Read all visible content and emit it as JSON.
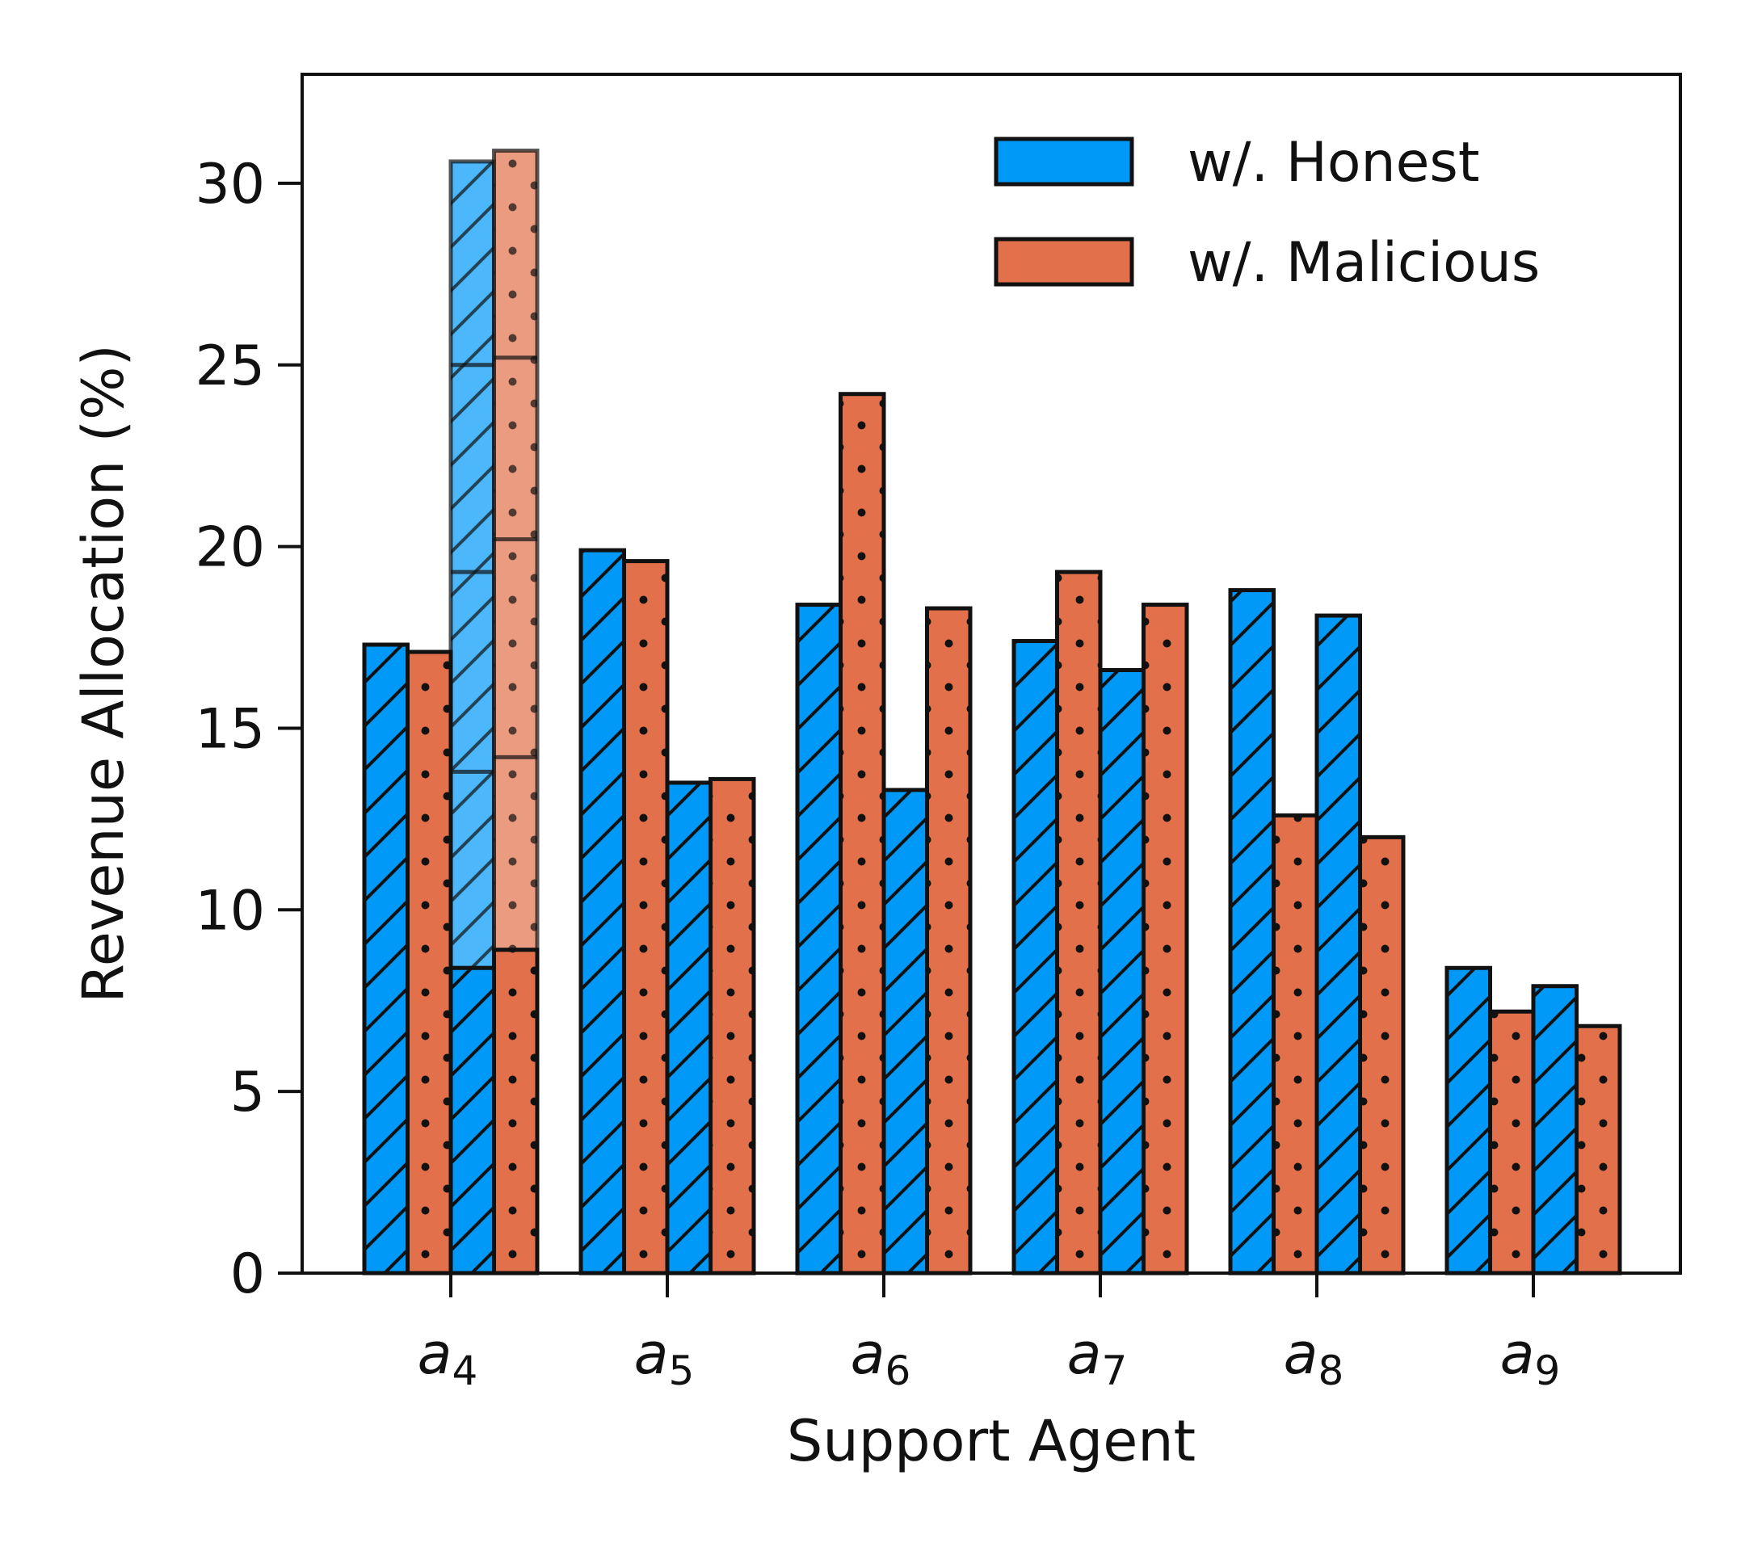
{
  "chart_data": {
    "type": "bar",
    "xlabel": "Support Agent",
    "ylabel": "Revenue Allocation (%)",
    "ylim": [
      0,
      33
    ],
    "yticks": [
      0,
      5,
      10,
      15,
      20,
      25,
      30
    ],
    "grid": false,
    "legend_position": "top-right",
    "categories": [
      {
        "base": "a",
        "sub": "4"
      },
      {
        "base": "a",
        "sub": "5"
      },
      {
        "base": "a",
        "sub": "6"
      },
      {
        "base": "a",
        "sub": "7"
      },
      {
        "base": "a",
        "sub": "8"
      },
      {
        "base": "a",
        "sub": "9"
      }
    ],
    "series": [
      {
        "name": "w/. Honest",
        "color": "#0099f8",
        "hatch": "diagonal"
      },
      {
        "name": "w/. Malicious",
        "color": "#e2704a",
        "hatch": "dots"
      }
    ],
    "groups": [
      {
        "bars": [
          {
            "series": 0,
            "value": 17.3
          },
          {
            "series": 1,
            "value": 17.1
          },
          {
            "series": 0,
            "value": 8.4
          },
          {
            "series": 1,
            "value": 8.9
          }
        ],
        "stacked_overlay": [
          {
            "series": 0,
            "segments": [
              8.4,
              13.8,
              19.3,
              25.0,
              30.6
            ]
          },
          {
            "series": 1,
            "segments": [
              8.9,
              14.2,
              20.2,
              25.2,
              30.9
            ]
          }
        ]
      },
      {
        "bars": [
          {
            "series": 0,
            "value": 19.9
          },
          {
            "series": 1,
            "value": 19.6
          },
          {
            "series": 0,
            "value": 13.5
          },
          {
            "series": 1,
            "value": 13.6
          }
        ]
      },
      {
        "bars": [
          {
            "series": 0,
            "value": 18.4
          },
          {
            "series": 1,
            "value": 24.2
          },
          {
            "series": 0,
            "value": 13.3
          },
          {
            "series": 1,
            "value": 18.3
          }
        ]
      },
      {
        "bars": [
          {
            "series": 0,
            "value": 17.4
          },
          {
            "series": 1,
            "value": 19.3
          },
          {
            "series": 0,
            "value": 16.6
          },
          {
            "series": 1,
            "value": 18.4
          }
        ]
      },
      {
        "bars": [
          {
            "series": 0,
            "value": 18.8
          },
          {
            "series": 1,
            "value": 12.6
          },
          {
            "series": 0,
            "value": 18.1
          },
          {
            "series": 1,
            "value": 12.0
          }
        ]
      },
      {
        "bars": [
          {
            "series": 0,
            "value": 8.4
          },
          {
            "series": 1,
            "value": 7.2
          },
          {
            "series": 0,
            "value": 7.9
          },
          {
            "series": 1,
            "value": 6.8
          }
        ]
      }
    ]
  }
}
